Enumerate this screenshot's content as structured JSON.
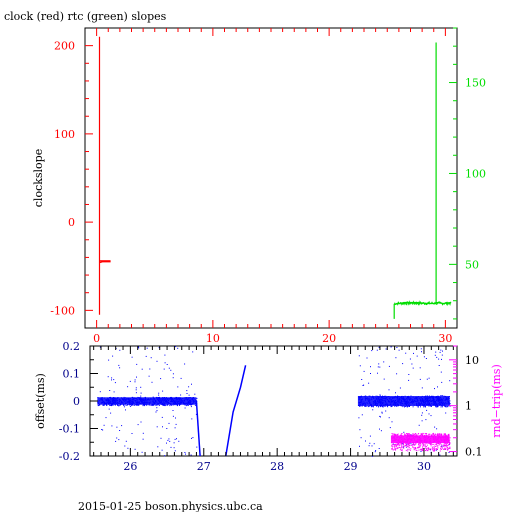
{
  "footer": "2015-01-25  boson.physics.ubc.ca",
  "chart_data": [
    {
      "type": "line",
      "title": "clock (red) rtc (green) slopes",
      "ylabel": "clockslope",
      "xlim": [
        -1,
        31
      ],
      "ylim": [
        -120,
        220
      ],
      "x_ticks": [
        0,
        10,
        20,
        30
      ],
      "y_ticks": [
        -100,
        0,
        100,
        200
      ],
      "y2lim": [
        15,
        180
      ],
      "y2_ticks": [
        50,
        100,
        150
      ],
      "colors": {
        "clock": "#ff0000",
        "rtc": "#00dd00",
        "axis_left": "#ff0000",
        "axis_right": "#00dd00"
      },
      "series": [
        {
          "axis": "left",
          "x": [
            0.25,
            0.25,
            0.25,
            0.25,
            0.5,
            1.0,
            1.2
          ],
          "y": [
            -105,
            210,
            -45,
            -46,
            -45,
            -45,
            -45
          ]
        },
        {
          "axis": "right",
          "x": [
            25.6,
            25.6,
            25.6,
            26.5,
            27.5,
            28.5,
            29.2,
            29.2,
            29.2,
            29.2,
            29.8,
            30.5
          ],
          "y": [
            20,
            28,
            28,
            29,
            29,
            28.5,
            28.5,
            172,
            28,
            29,
            28.5,
            29
          ]
        }
      ]
    },
    {
      "type": "scatter",
      "ylabel": "offset(ms)",
      "y2label": "rnd−trip(ms)",
      "xlim": [
        25.45,
        30.45
      ],
      "ylim": [
        -0.2,
        0.2
      ],
      "x_ticks": [
        26,
        27,
        28,
        29,
        30
      ],
      "y_ticks": [
        -0.2,
        -0.1,
        0,
        0.1,
        0.2
      ],
      "y2_scale": "log",
      "y2lim": [
        0.08,
        20
      ],
      "y2_ticks": [
        0.1,
        1,
        10
      ],
      "colors": {
        "offset": "#0000ff",
        "rtt": "#ff00ff"
      },
      "series": [
        {
          "axis": "left",
          "kind": "band",
          "x_range": [
            25.55,
            26.9
          ],
          "center": 0.0,
          "spread": 0.015
        },
        {
          "axis": "left",
          "kind": "line",
          "x": [
            26.9,
            26.95
          ],
          "y": [
            0.0,
            -0.2
          ]
        },
        {
          "axis": "left",
          "kind": "line",
          "x": [
            27.3,
            27.4,
            27.5,
            27.57
          ],
          "y": [
            -0.2,
            -0.04,
            0.05,
            0.13
          ]
        },
        {
          "axis": "left",
          "kind": "band",
          "x_range": [
            29.1,
            30.35
          ],
          "center": 0.0,
          "spread": 0.02
        },
        {
          "axis": "right",
          "kind": "band",
          "x_range": [
            29.55,
            30.35
          ],
          "center": 0.18,
          "spread": 0.03
        }
      ]
    }
  ]
}
